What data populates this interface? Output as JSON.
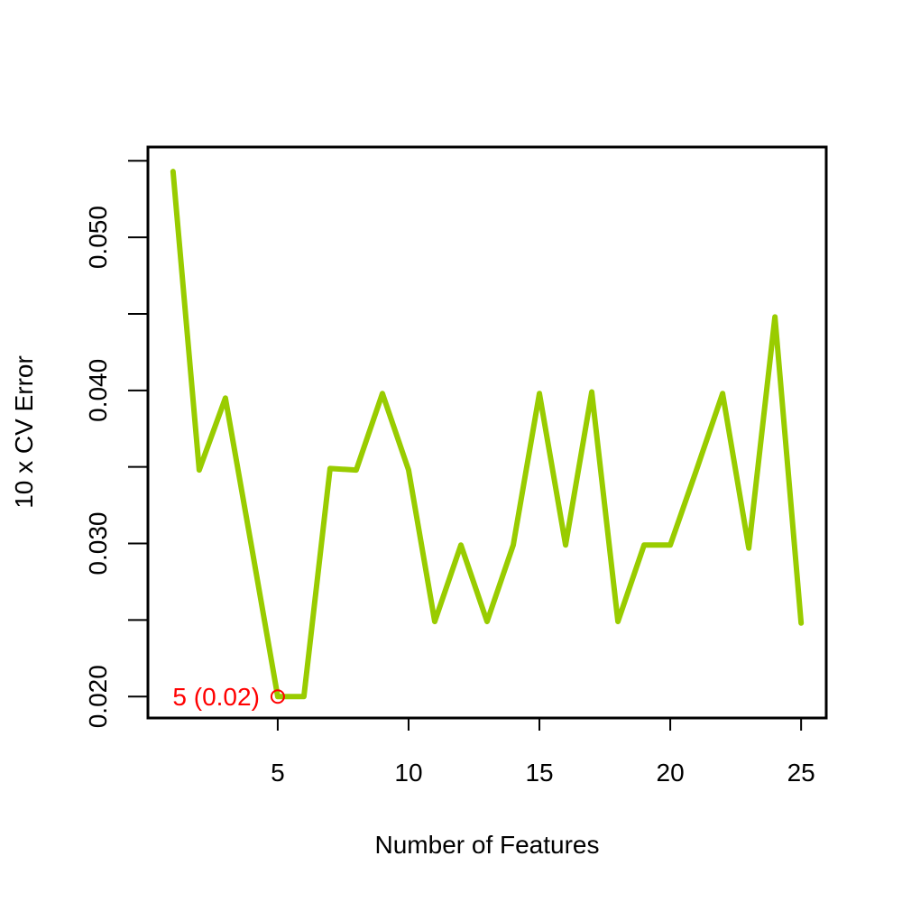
{
  "chart_data": {
    "type": "line",
    "x_label": "Number of Features",
    "y_label": "10 x CV Error",
    "x": [
      1,
      2,
      3,
      4,
      5,
      6,
      7,
      8,
      9,
      10,
      11,
      12,
      13,
      14,
      15,
      16,
      17,
      18,
      19,
      20,
      21,
      22,
      23,
      24,
      25
    ],
    "series": [
      {
        "color": "#99cc00",
        "values": [
          0.0543,
          0.0348,
          0.0395,
          0.0298,
          0.02,
          0.02,
          0.0349,
          0.0348,
          0.0398,
          0.0348,
          0.0249,
          0.0299,
          0.0249,
          0.0299,
          0.0398,
          0.0299,
          0.0399,
          0.0249,
          0.0299,
          0.0299,
          0.0348,
          0.0398,
          0.0297,
          0.0448,
          0.0248
        ]
      }
    ],
    "xlim": [
      0.04,
      25.96
    ],
    "ylim": [
      0.0186,
      0.0559
    ],
    "xticks": [
      5,
      10,
      15,
      20,
      25
    ],
    "yticks": [
      {
        "value": 0.02,
        "label": "0.020"
      },
      {
        "value": 0.03,
        "label": "0.030"
      },
      {
        "value": 0.04,
        "label": "0.040"
      },
      {
        "value": 0.05,
        "label": "0.050"
      }
    ],
    "yticks_unlabeled": [
      0.025,
      0.035,
      0.045,
      0.055
    ],
    "annotation": {
      "text": "5 (0.02)",
      "x": 5,
      "y": 0.02,
      "color": "#ff0000"
    }
  }
}
